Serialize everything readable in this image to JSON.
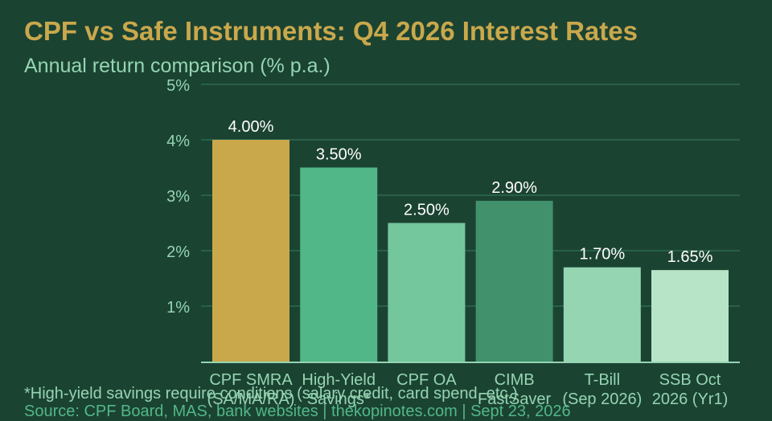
{
  "header": {
    "title": "CPF vs Safe Instruments: Q4 2026 Interest Rates",
    "subtitle": "Annual return comparison (% p.a.)"
  },
  "footer": {
    "note": "*High-yield savings require conditions (salary credit, card spend, etc.)",
    "source": "Source: CPF Board, MAS, bank websites | thekopinotes.com | Sept 23, 2026"
  },
  "colors": {
    "background": "#1b4332",
    "grid": "#2d6a4f",
    "axis": "#95d5b2",
    "tick_label": "#95d5b2",
    "value_label": "#ffffff"
  },
  "chart_data": {
    "type": "bar",
    "categories": [
      [
        "CPF SMRA",
        "(SA/MA/RA)"
      ],
      [
        "High-Yield",
        "Savings*"
      ],
      [
        "CPF OA"
      ],
      [
        "CIMB",
        "FastSaver"
      ],
      [
        "T-Bill",
        "(Sep 2026)"
      ],
      [
        "SSB Oct",
        "2026 (Yr1)"
      ]
    ],
    "values": [
      4.0,
      3.5,
      2.5,
      2.9,
      1.7,
      1.65
    ],
    "data_labels": [
      "4.00%",
      "3.50%",
      "2.50%",
      "2.90%",
      "1.70%",
      "1.65%"
    ],
    "bar_colors": [
      "#c9a84c",
      "#52b788",
      "#74c69d",
      "#40916c",
      "#95d5b2",
      "#b7e4c7"
    ],
    "ylim": [
      0,
      5
    ],
    "yticks": [
      1,
      2,
      3,
      4,
      5
    ],
    "ytick_labels": [
      "1%",
      "2%",
      "3%",
      "4%",
      "5%"
    ],
    "grid": true
  }
}
